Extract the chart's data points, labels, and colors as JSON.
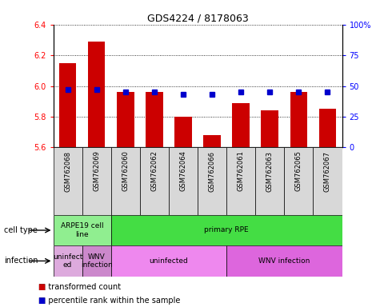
{
  "title": "GDS4224 / 8178063",
  "samples": [
    "GSM762068",
    "GSM762069",
    "GSM762060",
    "GSM762062",
    "GSM762064",
    "GSM762066",
    "GSM762061",
    "GSM762063",
    "GSM762065",
    "GSM762067"
  ],
  "transformed_counts": [
    6.15,
    6.29,
    5.96,
    5.96,
    5.8,
    5.68,
    5.89,
    5.84,
    5.96,
    5.85
  ],
  "percentile_ranks": [
    47,
    47,
    45,
    45,
    43,
    43,
    45,
    45,
    45,
    45
  ],
  "ylim": [
    5.6,
    6.4
  ],
  "yticks": [
    5.6,
    5.8,
    6.0,
    6.2,
    6.4
  ],
  "y2lim": [
    0,
    100
  ],
  "y2ticks": [
    0,
    25,
    50,
    75,
    100
  ],
  "y2ticklabels": [
    "0",
    "25",
    "50",
    "75",
    "100%"
  ],
  "bar_color": "#cc0000",
  "dot_color": "#0000cc",
  "cell_types": [
    {
      "label": "ARPE19 cell\nline",
      "start": 0,
      "end": 2,
      "color": "#90ee90"
    },
    {
      "label": "primary RPE",
      "start": 2,
      "end": 10,
      "color": "#44dd44"
    }
  ],
  "infections": [
    {
      "label": "uninfect\ned",
      "start": 0,
      "end": 1,
      "color": "#ddaadd"
    },
    {
      "label": "WNV\ninfection",
      "start": 1,
      "end": 2,
      "color": "#cc88cc"
    },
    {
      "label": "uninfected",
      "start": 2,
      "end": 6,
      "color": "#ee88ee"
    },
    {
      "label": "WNV infection",
      "start": 6,
      "end": 10,
      "color": "#dd66dd"
    }
  ],
  "legend_items": [
    {
      "label": "transformed count",
      "color": "#cc0000"
    },
    {
      "label": "percentile rank within the sample",
      "color": "#0000cc"
    }
  ],
  "sample_bg_color": "#d8d8d8",
  "n_samples": 10
}
